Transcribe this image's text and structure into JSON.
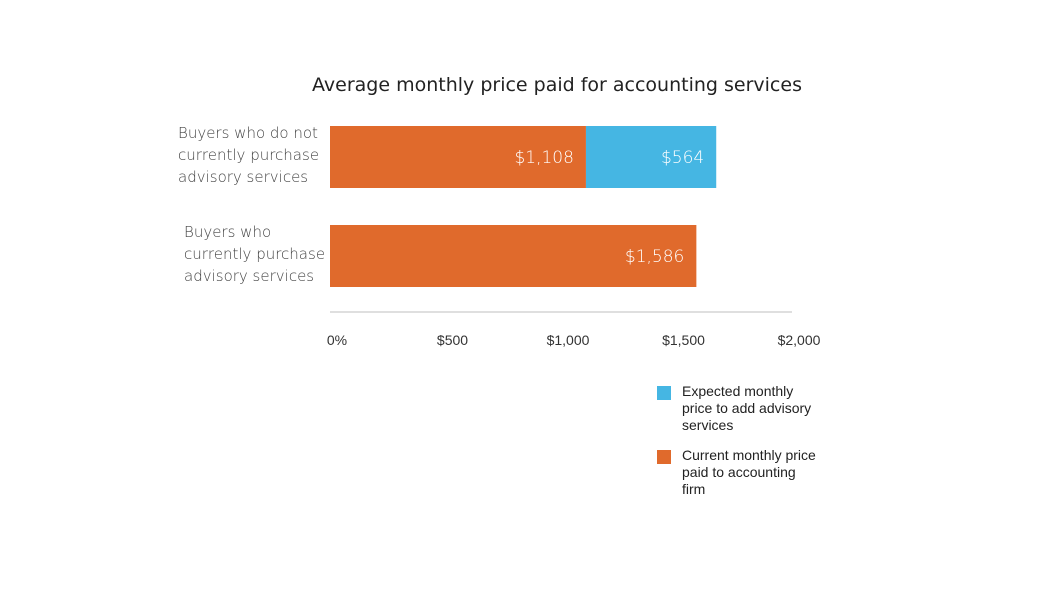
{
  "chart_data": {
    "type": "bar",
    "orientation": "horizontal",
    "stacked": true,
    "title": "Average monthly price paid for accounting services",
    "categories": [
      [
        "Buyers who do not",
        "currently purchase",
        "advisory services"
      ],
      [
        "Buyers who",
        "currently purchase",
        "advisory services"
      ]
    ],
    "series": [
      {
        "name": "Current monthly price paid to accounting firm",
        "legend_lines": [
          "Current monthly price",
          "paid to accounting",
          "firm"
        ],
        "color": "#e06a2c",
        "values": [
          1108,
          1586
        ],
        "labels": [
          "$1,108",
          "$1,586"
        ]
      },
      {
        "name": "Expected monthly price to add advisory services",
        "legend_lines": [
          "Expected monthly",
          "price to add advisory",
          "services"
        ],
        "color": "#45b6e3",
        "values": [
          564,
          null
        ],
        "labels": [
          "$564",
          ""
        ]
      }
    ],
    "xlim": [
      0,
      2000
    ],
    "xticks": [
      0,
      500,
      1000,
      1500,
      2000
    ],
    "xtick_labels": [
      "0%",
      "$500",
      "$1,000",
      "$1,500",
      "$2,000"
    ],
    "grid": false,
    "legend_position": "bottom-right",
    "legend_order": [
      1,
      0
    ],
    "xlabel": "",
    "ylabel": ""
  }
}
